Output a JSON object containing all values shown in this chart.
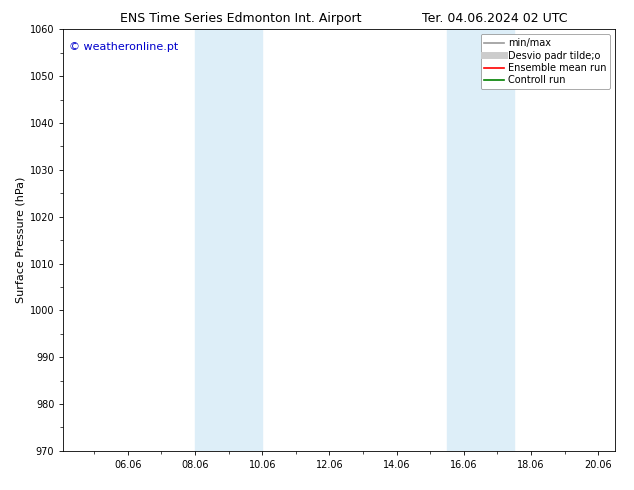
{
  "title_left": "ENS Time Series Edmonton Int. Airport",
  "title_right": "Ter. 04.06.2024 02 UTC",
  "ylabel": "Surface Pressure (hPa)",
  "watermark": "© weatheronline.pt",
  "watermark_color": "#0000cc",
  "background_color": "#ffffff",
  "plot_bg_color": "#ffffff",
  "ylim": [
    970,
    1060
  ],
  "yticks": [
    970,
    980,
    990,
    1000,
    1010,
    1020,
    1030,
    1040,
    1050,
    1060
  ],
  "xlim_start": 4.08,
  "xlim_end": 20.5,
  "xtick_labels": [
    "06.06",
    "08.06",
    "10.06",
    "12.06",
    "14.06",
    "16.06",
    "18.06",
    "20.06"
  ],
  "xtick_positions": [
    6.0,
    8.0,
    10.0,
    12.0,
    14.0,
    16.0,
    18.0,
    20.0
  ],
  "shaded_regions": [
    {
      "x_start": 8.0,
      "x_end": 10.0,
      "color": "#ddeef8"
    },
    {
      "x_start": 15.5,
      "x_end": 17.5,
      "color": "#ddeef8"
    }
  ],
  "legend_items": [
    {
      "label": "min/max",
      "color": "#999999",
      "linestyle": "-",
      "linewidth": 1.2
    },
    {
      "label": "Desvio padr tilde;o",
      "color": "#cccccc",
      "linestyle": "-",
      "linewidth": 5
    },
    {
      "label": "Ensemble mean run",
      "color": "#ff0000",
      "linestyle": "-",
      "linewidth": 1.2
    },
    {
      "label": "Controll run",
      "color": "#008000",
      "linestyle": "-",
      "linewidth": 1.2
    }
  ],
  "title_fontsize": 9,
  "tick_fontsize": 7,
  "ylabel_fontsize": 8,
  "watermark_fontsize": 8,
  "legend_fontsize": 7
}
